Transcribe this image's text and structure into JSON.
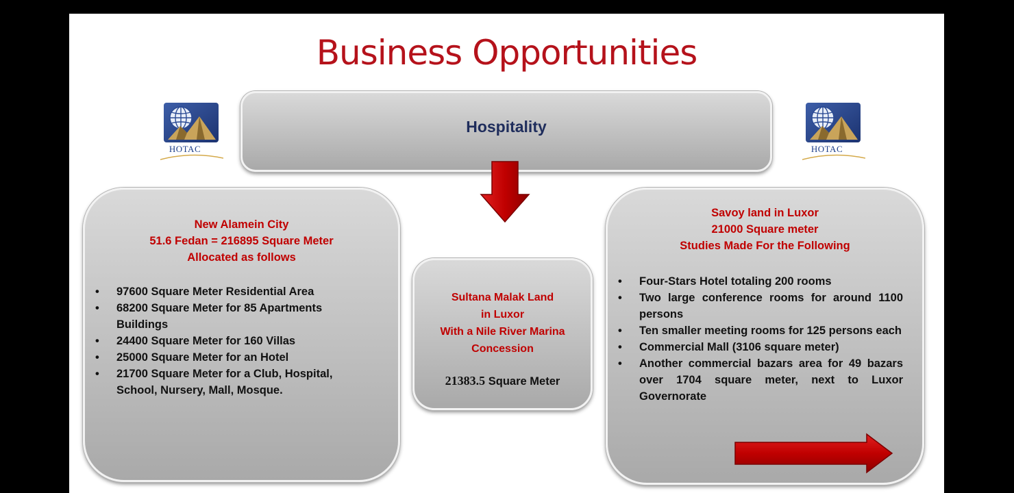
{
  "title": "Business Opportunities",
  "hospitality": {
    "label": "Hospitality"
  },
  "logo": {
    "text": "HOTAC"
  },
  "left_box": {
    "heading": [
      "New Alamein City",
      "51.6 Fedan = 216895 Square Meter",
      "Allocated as follows"
    ],
    "items": [
      "97600 Square Meter Residential Area",
      "68200 Square Meter for 85 Apartments Buildings",
      "24400 Square Meter for 160 Villas",
      "25000 Square Meter for an Hotel",
      "21700 Square Meter for a Club, Hospital, School, Nursery, Mall, Mosque."
    ]
  },
  "middle_box": {
    "heading": [
      "Sultana Malak Land",
      "in Luxor",
      "With a Nile River Marina",
      "Concession"
    ],
    "area_number": "21383.5",
    "area_unit": "Square Meter"
  },
  "right_box": {
    "heading": [
      "Savoy land in Luxor",
      "21000 Square meter",
      "Studies Made For the Following"
    ],
    "items": [
      "Four-Stars Hotel totaling 200 rooms",
      "Two large conference rooms for around 1100 persons",
      "Ten smaller meeting rooms for 125 persons each",
      "Commercial Mall (3106 square meter)",
      "Another commercial bazars area for 49 bazars over 1704 square meter, next to Luxor Governorate"
    ]
  },
  "colors": {
    "accent_red": "#b5121b",
    "navy": "#1f2d5c",
    "arrow_red": "#c00000"
  },
  "icons": [
    "hotac-logo-icon",
    "arrow-down-icon",
    "arrow-right-icon"
  ]
}
